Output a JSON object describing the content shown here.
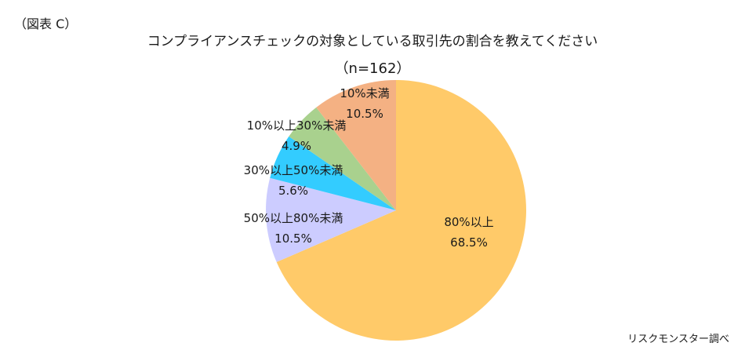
{
  "figure_label": "（図表 C）",
  "source": "リスクモンスター調べ",
  "chart_data": {
    "type": "pie",
    "title": "コンプライアンスチェックの対象としている取引先の割合を教えてください",
    "subtitle": "（n=162）",
    "start_angle_deg": 0,
    "direction": "clockwise",
    "slices": [
      {
        "label": "80%以上",
        "value": 68.5,
        "value_label": "68.5%",
        "color": "#FFCA69"
      },
      {
        "label": "50%以上80%未満",
        "value": 10.5,
        "value_label": "10.5%",
        "color": "#CCCCFF"
      },
      {
        "label": "30%以上50%未満",
        "value": 5.6,
        "value_label": "5.6%",
        "color": "#33CCFF"
      },
      {
        "label": "10%以上30%未満",
        "value": 4.9,
        "value_label": "4.9%",
        "color": "#A9D18E"
      },
      {
        "label": "10%未満",
        "value": 10.5,
        "value_label": "10.5%",
        "color": "#F4B183"
      }
    ]
  }
}
